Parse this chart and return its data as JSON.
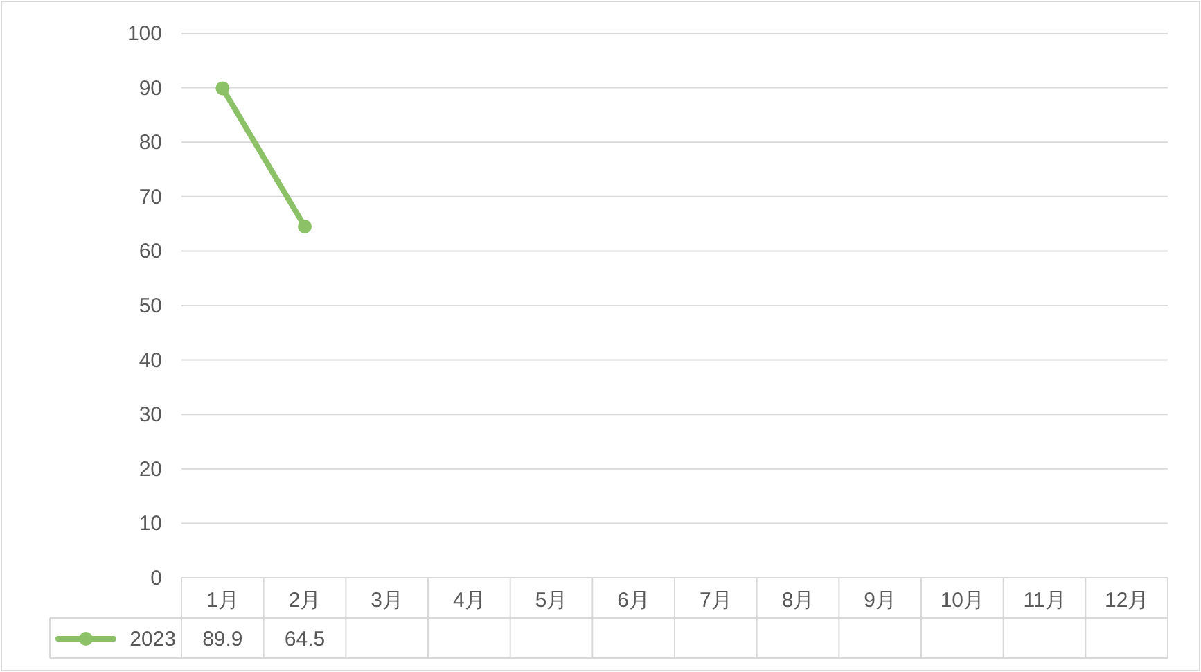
{
  "chart_data": {
    "type": "line",
    "categories": [
      "1月",
      "2月",
      "3月",
      "4月",
      "5月",
      "6月",
      "7月",
      "8月",
      "9月",
      "10月",
      "11月",
      "12月"
    ],
    "series": [
      {
        "name": "2023",
        "color": "#8cc168",
        "values": [
          89.9,
          64.5,
          null,
          null,
          null,
          null,
          null,
          null,
          null,
          null,
          null,
          null
        ]
      }
    ],
    "ylim": [
      0,
      100
    ],
    "yticks": [
      0,
      10,
      20,
      30,
      40,
      50,
      60,
      70,
      80,
      90,
      100
    ],
    "grid": "y",
    "marker": "circle",
    "data_labels": true,
    "legend": "bottom"
  }
}
